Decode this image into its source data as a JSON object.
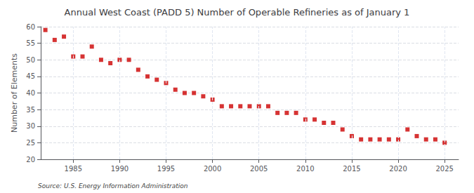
{
  "chart_data": {
    "type": "scatter",
    "title": "Annual West Coast (PADD 5) Number of Operable Refineries as of January 1",
    "ylabel": "Number of Elements",
    "annotation": "Source: U.S. Energy Information Administration",
    "x": [
      1982,
      1983,
      1984,
      1985,
      1986,
      1987,
      1988,
      1989,
      1990,
      1991,
      1992,
      1993,
      1994,
      1995,
      1996,
      1997,
      1998,
      1999,
      2000,
      2001,
      2002,
      2003,
      2004,
      2005,
      2006,
      2007,
      2008,
      2009,
      2010,
      2011,
      2012,
      2013,
      2014,
      2015,
      2016,
      2017,
      2018,
      2019,
      2020,
      2021,
      2022,
      2023,
      2024,
      2025
    ],
    "values": [
      59,
      56,
      57,
      51,
      51,
      54,
      50,
      49,
      50,
      50,
      47,
      45,
      44,
      43,
      41,
      40,
      40,
      39,
      38,
      36,
      36,
      36,
      36,
      36,
      36,
      34,
      34,
      34,
      32,
      32,
      31,
      31,
      29,
      27,
      26,
      26,
      26,
      26,
      26,
      29,
      27,
      26,
      26,
      25
    ],
    "color": "#cc0000",
    "marker": "square",
    "xlim": [
      1981.5,
      2026.5
    ],
    "xticks": [
      1985,
      1990,
      1995,
      2000,
      2005,
      2010,
      2015,
      2020,
      2025
    ],
    "ylim": [
      20,
      60
    ],
    "yticks": [
      20,
      25,
      30,
      35,
      40,
      45,
      50,
      55,
      60
    ],
    "grid": true
  }
}
